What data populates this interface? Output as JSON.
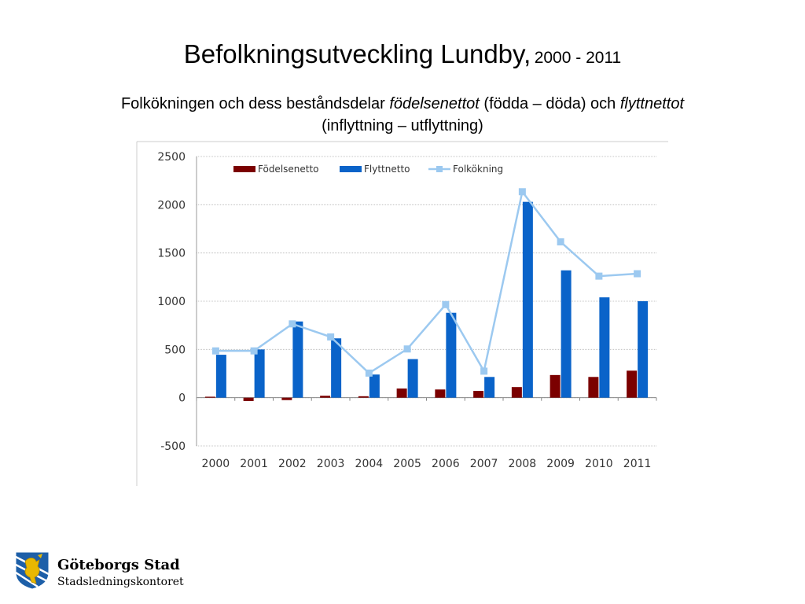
{
  "slide": {
    "title_main": "Befolkningsutveckling Lundby,",
    "title_years": "2000 - 2011",
    "subtitle_part1": "Folkökningen och dess beståndsdelar",
    "subtitle_term1": "födelsenettot",
    "subtitle_part2": "(födda – döda) och",
    "subtitle_term2": "flyttnettot",
    "subtitle_line2": "(inflyttning – utflyttning)"
  },
  "chart_data": {
    "type": "bar",
    "categories": [
      "2000",
      "2001",
      "2002",
      "2003",
      "2004",
      "2005",
      "2006",
      "2007",
      "2008",
      "2009",
      "2010",
      "2011"
    ],
    "series": [
      {
        "name": "Födelsenetto",
        "type": "bar",
        "color": "#7b0000",
        "values": [
          10,
          -35,
          -25,
          20,
          15,
          95,
          85,
          70,
          110,
          235,
          215,
          280
        ]
      },
      {
        "name": "Flyttnetto",
        "type": "bar",
        "color": "#0a63c9",
        "values": [
          445,
          500,
          790,
          615,
          240,
          400,
          880,
          215,
          2030,
          1320,
          1040,
          1000
        ]
      },
      {
        "name": "Folkökning",
        "type": "line",
        "color": "#9cc9f0",
        "values": [
          485,
          485,
          765,
          630,
          255,
          505,
          965,
          275,
          2135,
          1615,
          1260,
          1285
        ]
      }
    ],
    "yticks": [
      "2500",
      "2000",
      "1500",
      "1000",
      "500",
      "0",
      "-500"
    ],
    "ylim": [
      -500,
      2500
    ],
    "grid": true,
    "legend_position": "top"
  },
  "logo": {
    "line1": "Göteborgs Stad",
    "line2": "Stadsledningskontoret"
  },
  "colors": {
    "birth": "#7b0000",
    "migration": "#0a63c9",
    "growth": "#9cc9f0",
    "logo_blue": "#1d5fa8",
    "logo_gold": "#e8b800"
  }
}
